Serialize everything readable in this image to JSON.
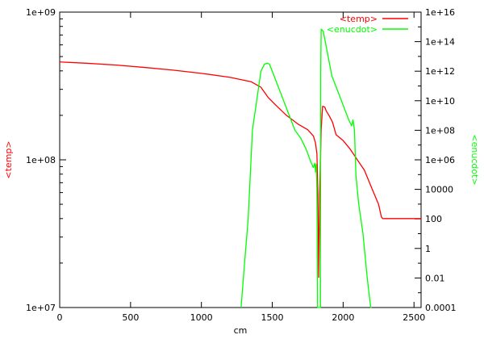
{
  "chart_data": {
    "type": "line",
    "xlabel": "cm",
    "ylabel_left": "<temp>",
    "ylabel_right": "<enucdot>",
    "xlim": [
      0,
      2550
    ],
    "ylim_left": [
      10000000,
      1000000000
    ],
    "ylim_right": [
      0.0001,
      1e+16
    ],
    "log_left": true,
    "log_right": true,
    "grid": false,
    "legend_position": "top-right",
    "x_ticks": [
      "0",
      "500",
      "1000",
      "1500",
      "2000",
      "2500"
    ],
    "x_tick_values": [
      0,
      500,
      1000,
      1500,
      2000,
      2500
    ],
    "y_ticks_left": [
      {
        "label": "1e+07",
        "value": 10000000
      },
      {
        "label": "1e+08",
        "value": 100000000
      },
      {
        "label": "1e+09",
        "value": 1000000000
      }
    ],
    "y_ticks_right": [
      {
        "label": "0.0001",
        "value": 0.0001
      },
      {
        "label": "0.01",
        "value": 0.01
      },
      {
        "label": "1",
        "value": 1
      },
      {
        "label": "100",
        "value": 100
      },
      {
        "label": "10000",
        "value": 10000
      },
      {
        "label": "1e+06",
        "value": 1000000
      },
      {
        "label": "1e+08",
        "value": 100000000
      },
      {
        "label": "1e+10",
        "value": 10000000000
      },
      {
        "label": "1e+12",
        "value": 1000000000000
      },
      {
        "label": "1e+14",
        "value": 100000000000000
      },
      {
        "label": "1e+16",
        "value": 1e+16
      }
    ],
    "series": [
      {
        "name": "<temp>",
        "color": "#ff0000",
        "axis": "left",
        "x": [
          0,
          200,
          400,
          600,
          800,
          1000,
          1200,
          1350,
          1420,
          1470,
          1520,
          1600,
          1680,
          1750,
          1790,
          1805,
          1815,
          1822,
          1828,
          1835,
          1845,
          1855,
          1870,
          1880,
          1900,
          1925,
          1950,
          2000,
          2050,
          2100,
          2150,
          2200,
          2250,
          2270,
          2280,
          2550
        ],
        "y": [
          460000000,
          450000000,
          438000000,
          422000000,
          405000000,
          385000000,
          362000000,
          338000000,
          310000000,
          265000000,
          237000000,
          200000000,
          175000000,
          160000000,
          145000000,
          130000000,
          110000000,
          60000000,
          16000000,
          60000000,
          160000000,
          230000000,
          228000000,
          215000000,
          200000000,
          180000000,
          148000000,
          135000000,
          118000000,
          100000000,
          85000000,
          65000000,
          50000000,
          41000000,
          40000000,
          40000000
        ]
      },
      {
        "name": "<enucdot>",
        "color": "#00ff00",
        "axis": "right",
        "x": [
          1280,
          1300,
          1330,
          1360,
          1390,
          1420,
          1445,
          1465,
          1480,
          1500,
          1540,
          1580,
          1620,
          1660,
          1700,
          1740,
          1770,
          1790,
          1800,
          1805,
          1810,
          1815,
          1820,
          1822,
          1824,
          1827,
          1830,
          1835,
          1840,
          1842,
          1845,
          1860,
          1880,
          1900,
          1920,
          1960,
          2000,
          2040,
          2060,
          2070,
          2080,
          2090,
          2110,
          2140,
          2170,
          2195,
          2200
        ],
        "y": [
          0.0001,
          0.03,
          100,
          100000000,
          10000000000,
          1000000000000,
          3000000000000,
          3500000000000,
          3000000000000,
          1000000000000,
          100000000000,
          10000000000,
          1000000000,
          100000000,
          30000000,
          5000000,
          800000,
          300000,
          600000,
          150000,
          500000,
          10000,
          0.0001,
          0.0001,
          0.0001,
          0.0001,
          0.0001,
          0.0001,
          0.0001,
          1000000000000,
          700000000000000,
          500000000000000,
          50000000000000,
          5000000000000,
          500000000000,
          50000000000,
          5000000000,
          500000000,
          200000000,
          500000000,
          100000000,
          100000,
          1000,
          10,
          0.01,
          0.0001,
          0.0001
        ]
      }
    ]
  }
}
